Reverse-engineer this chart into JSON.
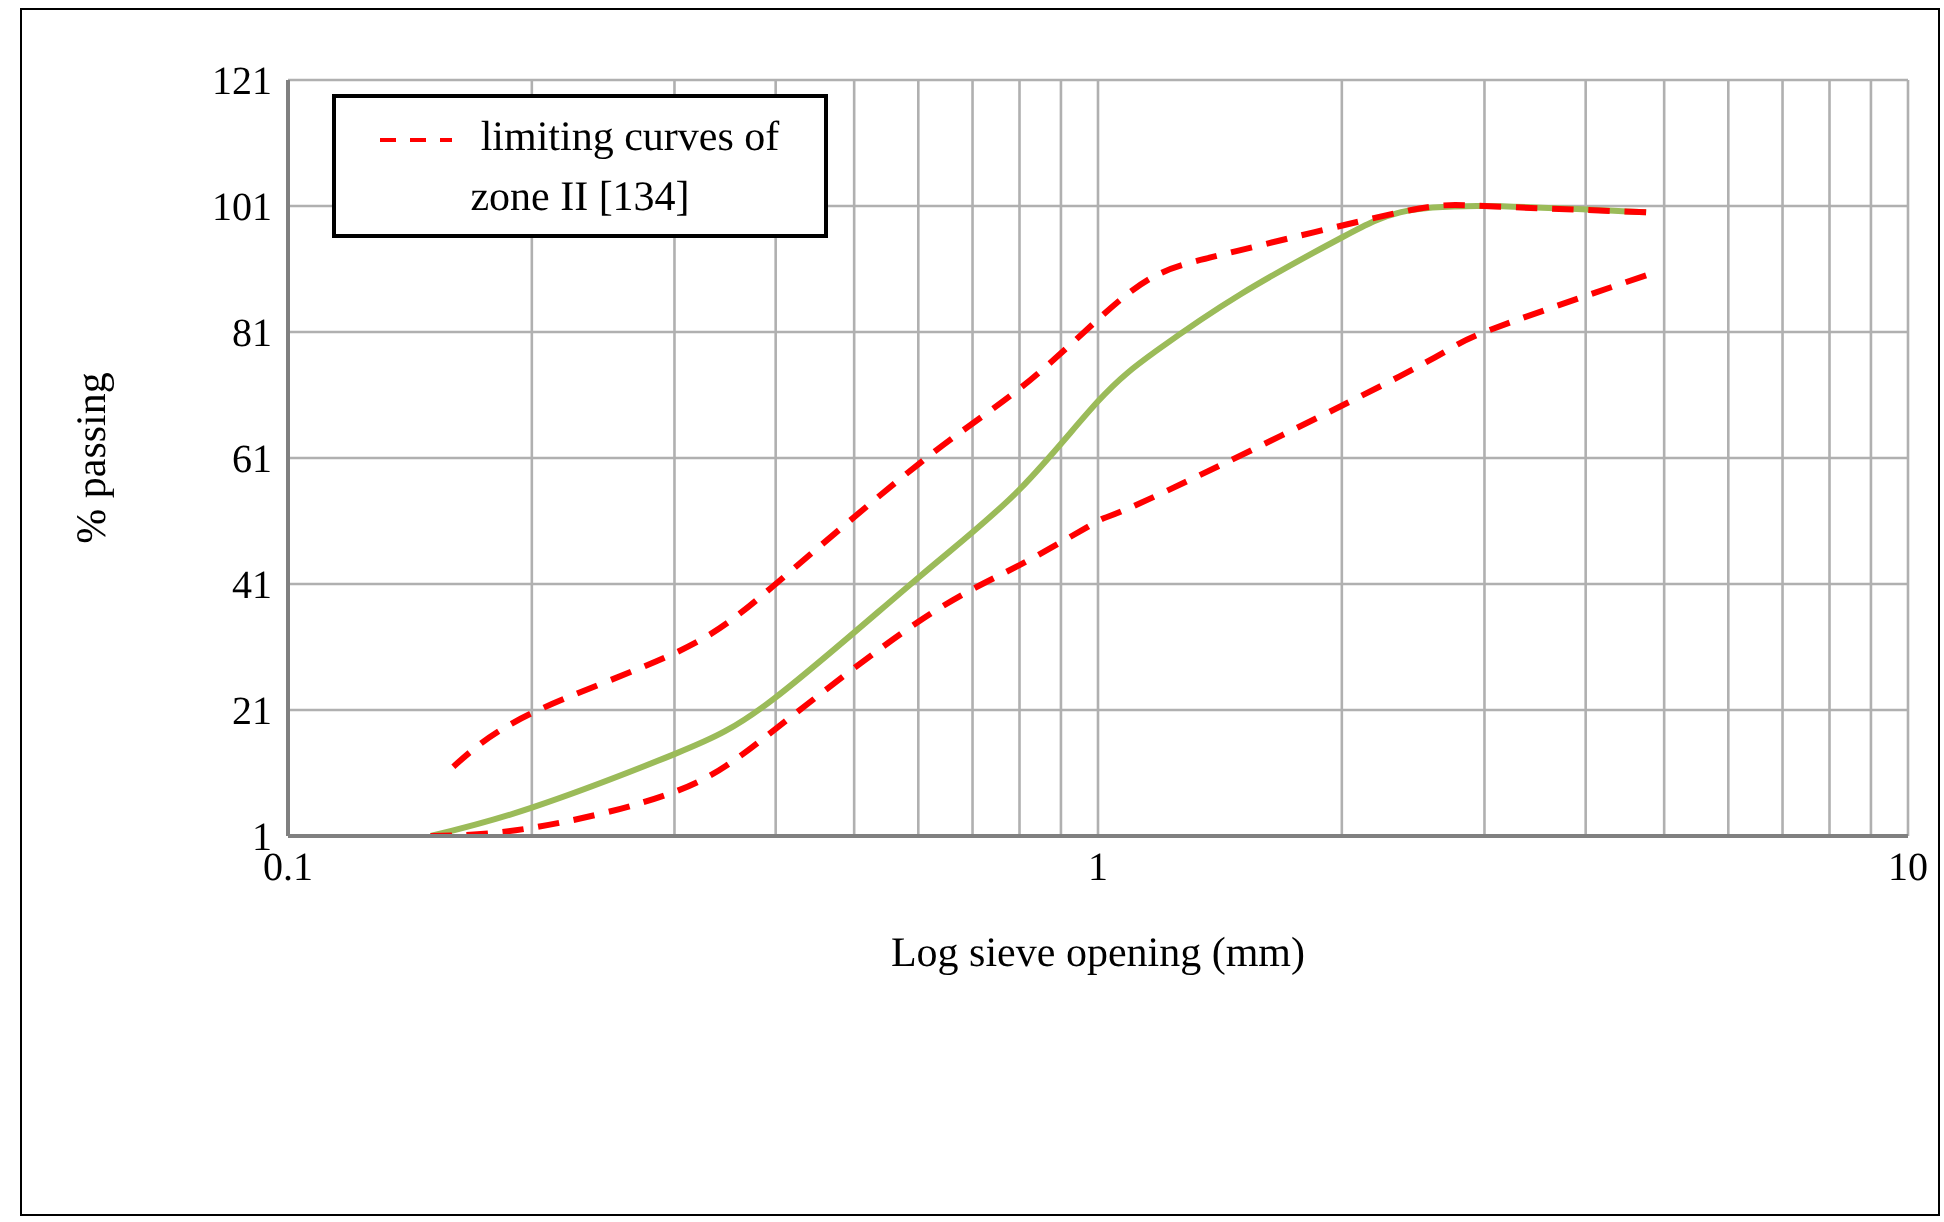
{
  "chart_data": {
    "type": "line",
    "xlabel": "Log sieve opening (mm)",
    "ylabel": "% passing",
    "log": "x",
    "xlim": [
      0.1,
      10
    ],
    "ylim": [
      1,
      121
    ],
    "xticks": [
      0.1,
      {
        "value": 0.2,
        "label": null
      },
      {
        "value": 0.3,
        "label": null
      },
      {
        "value": 0.4,
        "label": null
      },
      {
        "value": 0.5,
        "label": null
      },
      {
        "value": 0.6,
        "label": null
      },
      {
        "value": 0.7,
        "label": null
      },
      {
        "value": 0.8,
        "label": null
      },
      {
        "value": 0.9,
        "label": null
      },
      1,
      {
        "value": 2,
        "label": null
      },
      {
        "value": 3,
        "label": null
      },
      {
        "value": 4,
        "label": null
      },
      {
        "value": 5,
        "label": null
      },
      {
        "value": 6,
        "label": null
      },
      {
        "value": 7,
        "label": null
      },
      {
        "value": 8,
        "label": null
      },
      {
        "value": 9,
        "label": null
      },
      10
    ],
    "yticks": [
      1,
      21,
      41,
      61,
      81,
      101,
      121
    ],
    "grid": true,
    "legend": "top left",
    "series": [
      {
        "name": "limiting curves of zone II [134]",
        "color": "#ff0000",
        "line_style": "dashed",
        "x": [
          0.16,
          0.2,
          0.3,
          0.4,
          0.6,
          0.8,
          1,
          1.18,
          1.5,
          2.36,
          3,
          4.75
        ],
        "values": [
          12,
          20.5,
          30,
          41,
          60,
          72,
          83,
          90,
          94,
          100,
          101,
          100
        ]
      },
      {
        "color": "#ff0000",
        "line_style": "dashed",
        "x": [
          0.15,
          0.2,
          0.3,
          0.4,
          0.6,
          0.8,
          1,
          1.18,
          2.36,
          3,
          4.75
        ],
        "values": [
          1,
          2.3,
          8,
          18,
          35,
          44,
          51,
          55,
          74,
          81,
          90
        ]
      },
      {
        "color": "#9bbb59",
        "line_style": "solid",
        "x": [
          0.15,
          0.2,
          0.3,
          0.4,
          0.6,
          0.8,
          1,
          1.18,
          1.5,
          2,
          2.36,
          3,
          4.75
        ],
        "values": [
          1,
          5.5,
          14,
          23,
          42,
          56,
          70,
          78,
          87,
          96,
          100,
          101,
          100
        ]
      }
    ]
  }
}
